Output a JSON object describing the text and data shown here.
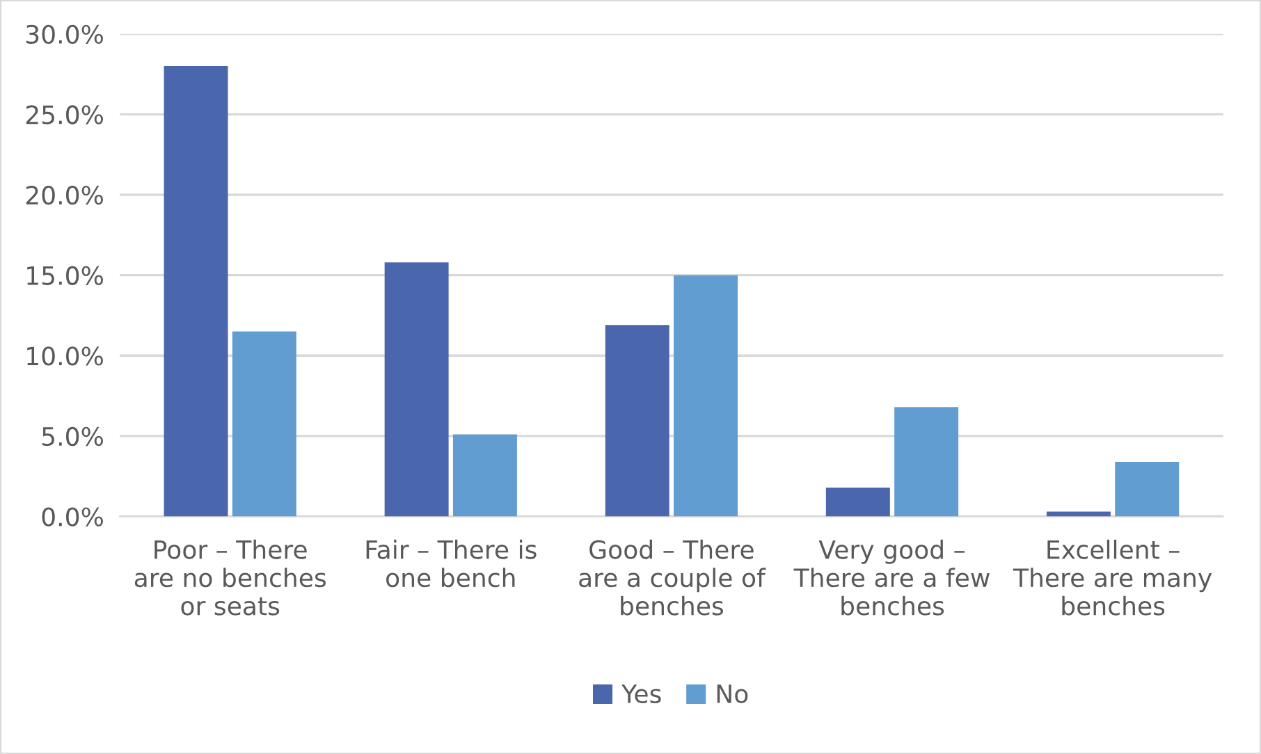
{
  "chart_data": {
    "type": "bar",
    "categories": [
      "Poor – There are no benches or seats",
      "Fair – There is one bench",
      "Good – There are a couple of benches",
      "Very good – There are a few benches",
      "Excellent – There are many benches"
    ],
    "series": [
      {
        "name": "Yes",
        "color": "#4a66ac",
        "values": [
          28.0,
          15.8,
          11.9,
          1.8,
          0.3
        ]
      },
      {
        "name": "No",
        "color": "#629dd1",
        "values": [
          11.5,
          5.1,
          15.0,
          6.8,
          3.4
        ]
      }
    ],
    "ylim": [
      0,
      30
    ],
    "yticks": [
      {
        "value": 0,
        "label": "0.0%"
      },
      {
        "value": 5,
        "label": "5.0%"
      },
      {
        "value": 10,
        "label": "10.0%"
      },
      {
        "value": 15,
        "label": "15.0%"
      },
      {
        "value": 20,
        "label": "20.0%"
      },
      {
        "value": 25,
        "label": "25.0%"
      },
      {
        "value": 30,
        "label": "30.0%"
      }
    ],
    "grid": "y",
    "legend": "bottom"
  }
}
